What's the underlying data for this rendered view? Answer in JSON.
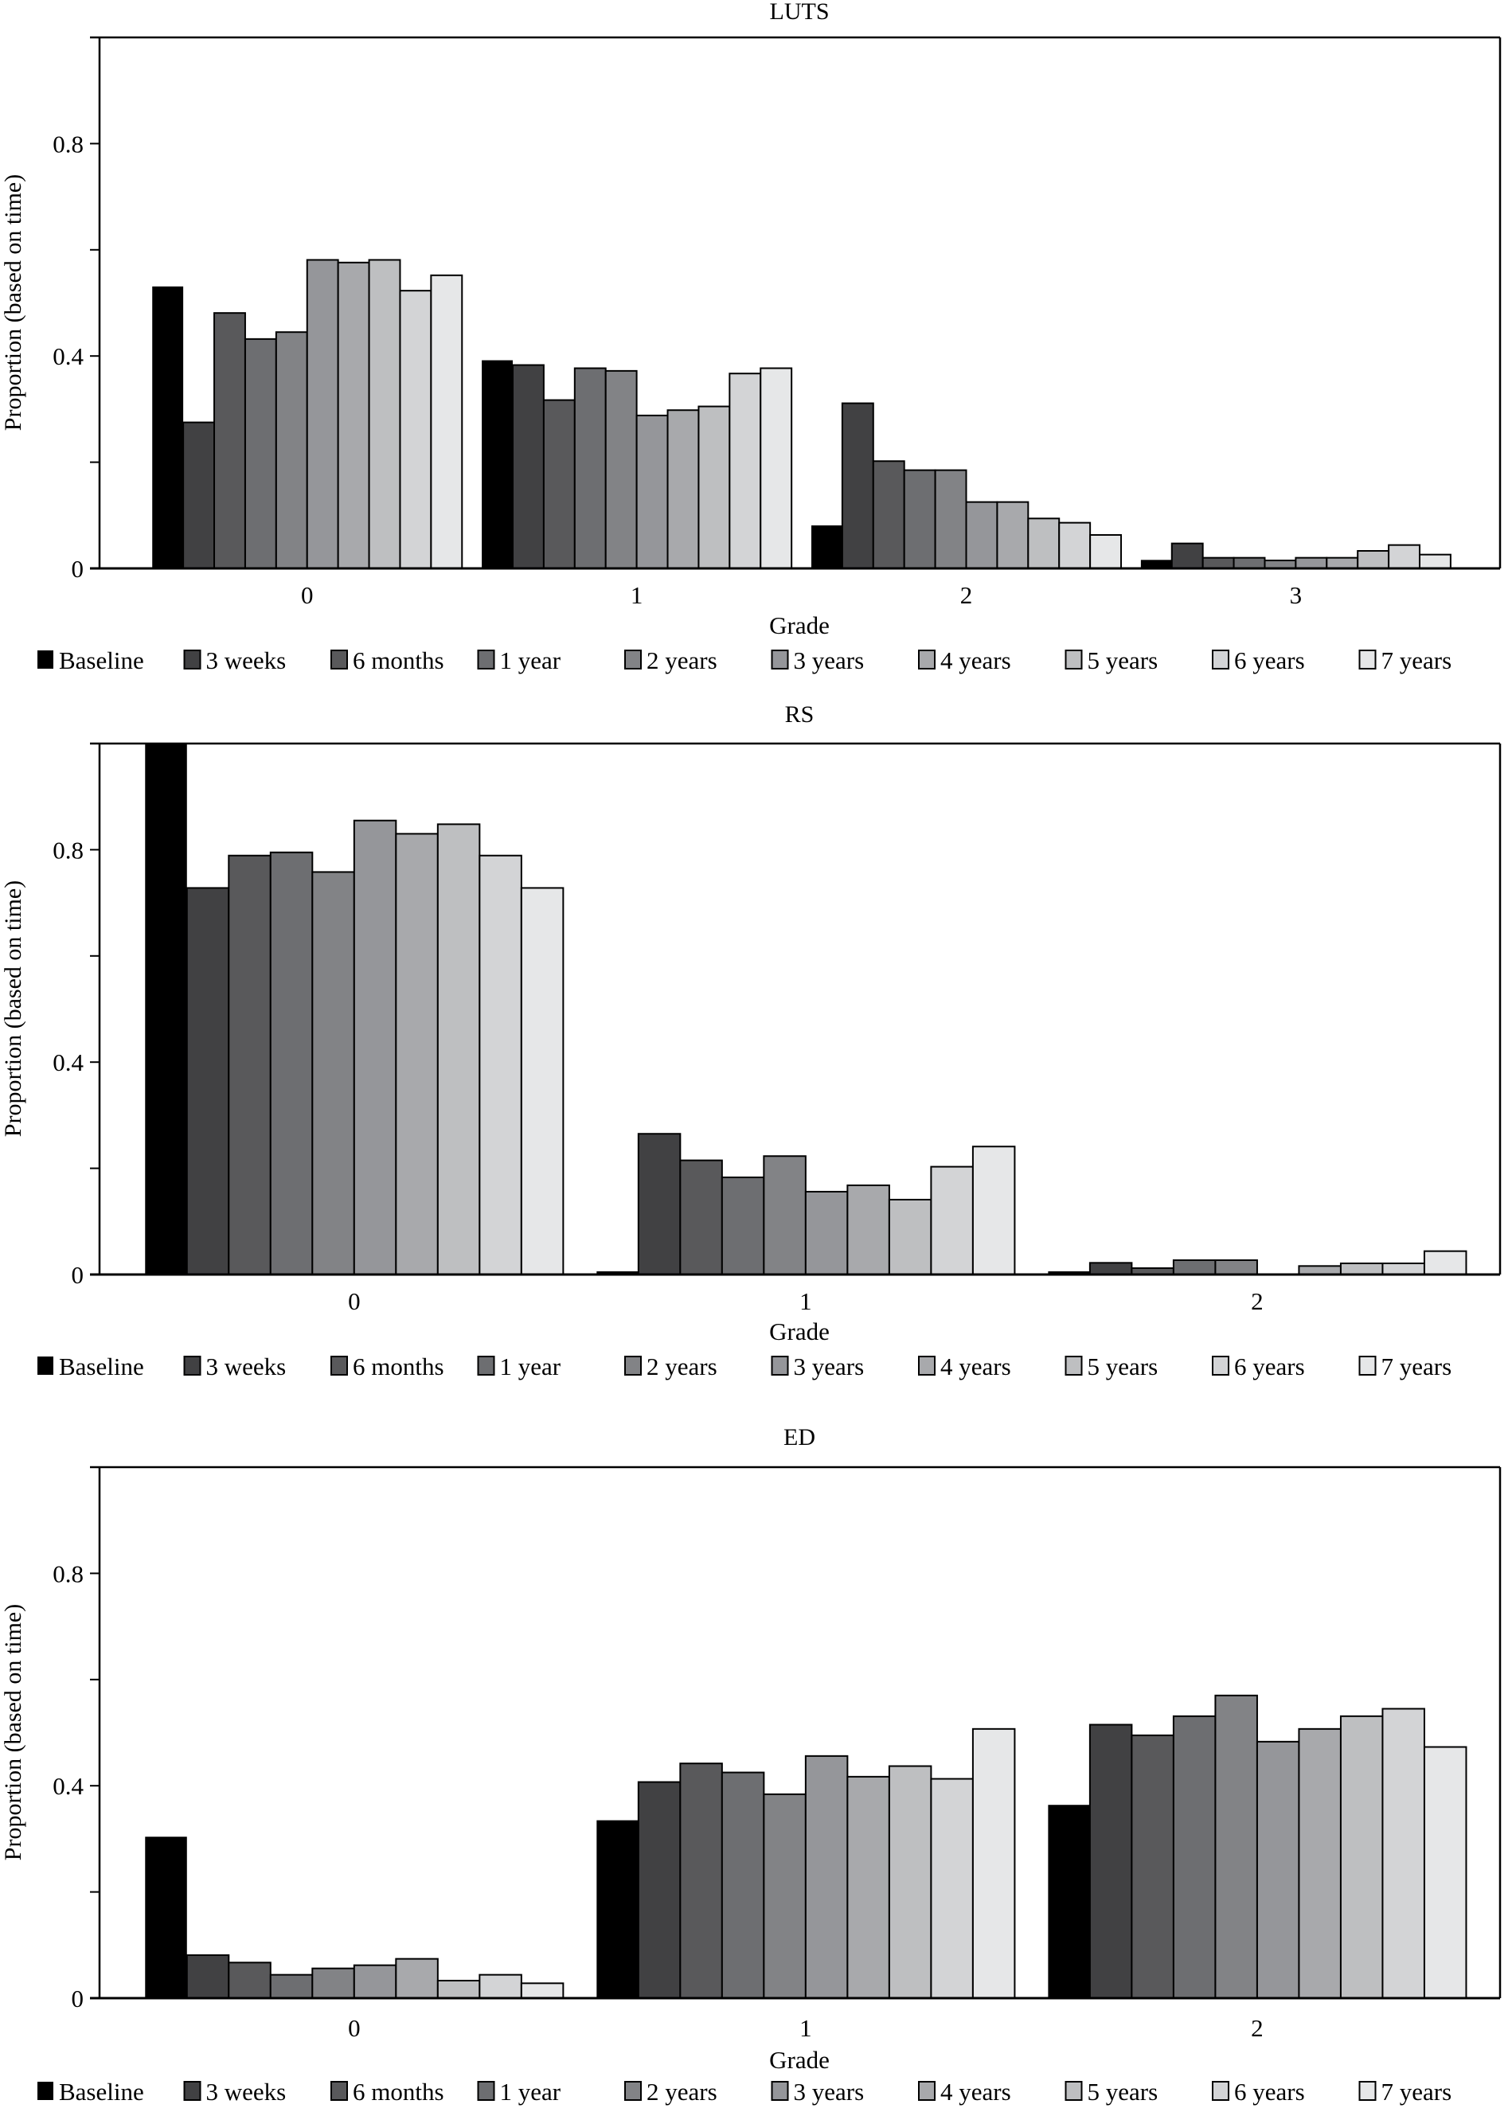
{
  "figure": {
    "series_names": [
      "Baseline",
      "3 weeks",
      "6 months",
      "1 year",
      "2 years",
      "3 years",
      "4 years",
      "5 years",
      "6 years",
      "7 years"
    ],
    "series_colors": [
      "#000000",
      "#414143",
      "#59595b",
      "#6d6e71",
      "#828386",
      "#95969a",
      "#a8a9ac",
      "#bebfc1",
      "#d3d4d6",
      "#e6e7e8"
    ]
  },
  "chart_data": [
    {
      "type": "bar",
      "title": "LUTS",
      "xlabel": "Grade",
      "ylabel": "Proportion (based on time)",
      "categories": [
        "0",
        "1",
        "2",
        "3"
      ],
      "ylim": [
        0,
        1.0
      ],
      "yticks": [
        0,
        0.2,
        0.4,
        0.6,
        0.8,
        1.0
      ],
      "ytick_labels": [
        "0",
        "",
        "0.4",
        "",
        "0.8",
        ""
      ],
      "grid": false,
      "legend": "bottom",
      "series": [
        {
          "name": "Baseline",
          "values": [
            0.531,
            0.392,
            0.081,
            0.016
          ]
        },
        {
          "name": "3 weeks",
          "values": [
            0.275,
            0.383,
            0.311,
            0.047
          ]
        },
        {
          "name": "6 months",
          "values": [
            0.481,
            0.317,
            0.202,
            0.02
          ]
        },
        {
          "name": "1 year",
          "values": [
            0.432,
            0.377,
            0.185,
            0.02
          ]
        },
        {
          "name": "2 years",
          "values": [
            0.445,
            0.372,
            0.185,
            0.015
          ]
        },
        {
          "name": "3 years",
          "values": [
            0.581,
            0.288,
            0.125,
            0.02
          ]
        },
        {
          "name": "4 years",
          "values": [
            0.576,
            0.298,
            0.125,
            0.02
          ]
        },
        {
          "name": "5 years",
          "values": [
            0.581,
            0.305,
            0.094,
            0.033
          ]
        },
        {
          "name": "6 years",
          "values": [
            0.523,
            0.367,
            0.086,
            0.044
          ]
        },
        {
          "name": "7 years",
          "values": [
            0.552,
            0.377,
            0.063,
            0.026
          ]
        }
      ]
    },
    {
      "type": "bar",
      "title": "RS",
      "xlabel": "Grade",
      "ylabel": "Proportion (based on time)",
      "categories": [
        "0",
        "1",
        "2"
      ],
      "ylim": [
        0,
        1.0
      ],
      "yticks": [
        0,
        0.2,
        0.4,
        0.6,
        0.8,
        1.0
      ],
      "ytick_labels": [
        "0",
        "",
        "0.4",
        "",
        "0.8",
        ""
      ],
      "grid": false,
      "legend": "bottom",
      "series": [
        {
          "name": "Baseline",
          "values": [
            1.0,
            0.006,
            0.006
          ]
        },
        {
          "name": "3 weeks",
          "values": [
            0.728,
            0.265,
            0.022
          ]
        },
        {
          "name": "6 months",
          "values": [
            0.789,
            0.215,
            0.012
          ]
        },
        {
          "name": "1 year",
          "values": [
            0.795,
            0.183,
            0.027
          ]
        },
        {
          "name": "2 years",
          "values": [
            0.758,
            0.223,
            0.027
          ]
        },
        {
          "name": "3 years",
          "values": [
            0.855,
            0.156,
            0.0
          ]
        },
        {
          "name": "4 years",
          "values": [
            0.83,
            0.168,
            0.016
          ]
        },
        {
          "name": "5 years",
          "values": [
            0.848,
            0.141,
            0.021
          ]
        },
        {
          "name": "6 years",
          "values": [
            0.789,
            0.203,
            0.021
          ]
        },
        {
          "name": "7 years",
          "values": [
            0.728,
            0.241,
            0.044
          ]
        }
      ]
    },
    {
      "type": "bar",
      "title": "ED",
      "xlabel": "Grade",
      "ylabel": "Proportion (based on time)",
      "categories": [
        "0",
        "1",
        "2"
      ],
      "ylim": [
        0,
        1.0
      ],
      "yticks": [
        0,
        0.2,
        0.4,
        0.6,
        0.8,
        1.0
      ],
      "ytick_labels": [
        "0",
        "",
        "0.4",
        "",
        "0.8",
        ""
      ],
      "grid": false,
      "legend": "bottom",
      "series": [
        {
          "name": "Baseline",
          "values": [
            0.304,
            0.335,
            0.364
          ]
        },
        {
          "name": "3 weeks",
          "values": [
            0.081,
            0.407,
            0.515
          ]
        },
        {
          "name": "6 months",
          "values": [
            0.067,
            0.442,
            0.495
          ]
        },
        {
          "name": "1 year",
          "values": [
            0.044,
            0.425,
            0.531
          ]
        },
        {
          "name": "2 years",
          "values": [
            0.056,
            0.384,
            0.57
          ]
        },
        {
          "name": "3 years",
          "values": [
            0.062,
            0.456,
            0.483
          ]
        },
        {
          "name": "4 years",
          "values": [
            0.074,
            0.417,
            0.507
          ]
        },
        {
          "name": "5 years",
          "values": [
            0.033,
            0.437,
            0.531
          ]
        },
        {
          "name": "6 years",
          "values": [
            0.044,
            0.413,
            0.545
          ]
        },
        {
          "name": "7 years",
          "values": [
            0.028,
            0.507,
            0.473
          ]
        }
      ]
    }
  ]
}
